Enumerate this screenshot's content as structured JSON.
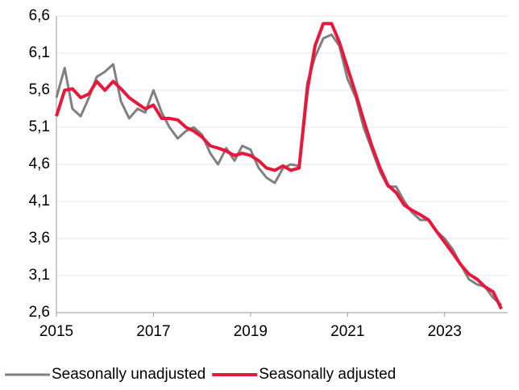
{
  "chart_data": {
    "type": "line",
    "x": [
      2015.0,
      2015.17,
      2015.33,
      2015.5,
      2015.67,
      2015.83,
      2016.0,
      2016.17,
      2016.33,
      2016.5,
      2016.67,
      2016.83,
      2017.0,
      2017.17,
      2017.33,
      2017.5,
      2017.67,
      2017.83,
      2018.0,
      2018.17,
      2018.33,
      2018.5,
      2018.67,
      2018.83,
      2019.0,
      2019.17,
      2019.33,
      2019.5,
      2019.67,
      2019.83,
      2020.0,
      2020.17,
      2020.33,
      2020.5,
      2020.67,
      2020.83,
      2021.0,
      2021.17,
      2021.33,
      2021.5,
      2021.67,
      2021.83,
      2022.0,
      2022.17,
      2022.33,
      2022.5,
      2022.67,
      2022.83,
      2023.0,
      2023.17,
      2023.33,
      2023.5,
      2023.67,
      2023.83,
      2024.0,
      2024.17
    ],
    "series": [
      {
        "name": "Seasonally unadjusted",
        "color": "#808080",
        "width": 3,
        "values": [
          5.5,
          5.9,
          5.35,
          5.25,
          5.5,
          5.78,
          5.85,
          5.95,
          5.45,
          5.22,
          5.35,
          5.3,
          5.6,
          5.3,
          5.1,
          4.95,
          5.05,
          5.1,
          5.0,
          4.75,
          4.6,
          4.82,
          4.65,
          4.85,
          4.8,
          4.55,
          4.42,
          4.35,
          4.55,
          4.6,
          4.58,
          5.7,
          6.05,
          6.3,
          6.35,
          6.2,
          5.75,
          5.5,
          5.1,
          4.8,
          4.5,
          4.3,
          4.3,
          4.1,
          3.95,
          3.85,
          3.85,
          3.7,
          3.6,
          3.45,
          3.25,
          3.05,
          2.98,
          2.95,
          2.8,
          2.7
        ]
      },
      {
        "name": "Seasonally adjusted",
        "color": "#e8173c",
        "width": 4,
        "values": [
          5.25,
          5.6,
          5.62,
          5.5,
          5.55,
          5.72,
          5.6,
          5.72,
          5.62,
          5.5,
          5.42,
          5.35,
          5.4,
          5.22,
          5.22,
          5.2,
          5.1,
          5.05,
          4.97,
          4.85,
          4.82,
          4.78,
          4.72,
          4.75,
          4.72,
          4.65,
          4.55,
          4.52,
          4.58,
          4.52,
          4.55,
          5.6,
          6.2,
          6.5,
          6.5,
          6.25,
          5.9,
          5.55,
          5.2,
          4.85,
          4.55,
          4.32,
          4.22,
          4.05,
          3.98,
          3.92,
          3.85,
          3.7,
          3.55,
          3.4,
          3.25,
          3.12,
          3.05,
          2.95,
          2.88,
          2.65
        ]
      }
    ],
    "xlim": [
      2015,
      2024.3
    ],
    "xticks": [
      2015,
      2017,
      2019,
      2021,
      2023
    ],
    "ylim": [
      2.6,
      6.6
    ],
    "yticks": [
      {
        "value": 2.6,
        "label": "2,6"
      },
      {
        "value": 3.1,
        "label": "3,1"
      },
      {
        "value": 3.6,
        "label": "3,6"
      },
      {
        "value": 4.1,
        "label": "4,1"
      },
      {
        "value": 4.6,
        "label": "4,6"
      },
      {
        "value": 5.1,
        "label": "5,1"
      },
      {
        "value": 5.6,
        "label": "5,6"
      },
      {
        "value": 6.1,
        "label": "6,1"
      },
      {
        "value": 6.6,
        "label": "6,6"
      }
    ],
    "grid": true,
    "legend": "bottom"
  }
}
